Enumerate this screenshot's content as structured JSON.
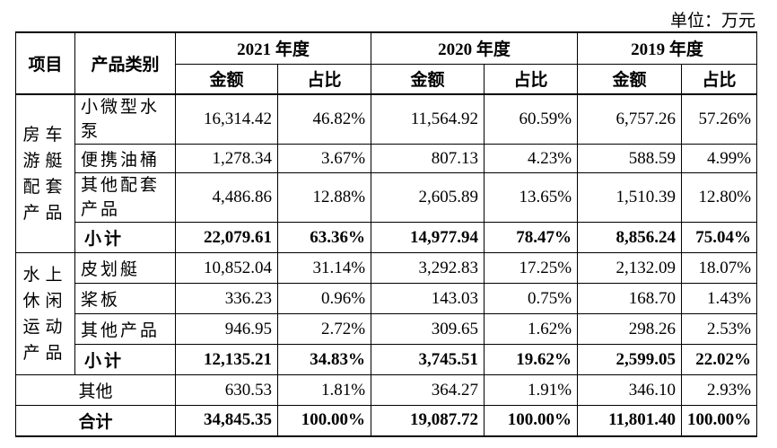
{
  "unit_label": "单位：万元",
  "headers": {
    "item": "项目",
    "category": "产品类别",
    "years": [
      "2021 年度",
      "2020 年度",
      "2019 年度"
    ],
    "amount": "金额",
    "ratio": "占比"
  },
  "groups": [
    {
      "name": "房车游艇配套产品",
      "rows": [
        {
          "label": "小微型水泵",
          "values": [
            "16,314.42",
            "46.82%",
            "11,564.92",
            "60.59%",
            "6,757.26",
            "57.26%"
          ]
        },
        {
          "label": "便携油桶",
          "values": [
            "1,278.34",
            "3.67%",
            "807.13",
            "4.23%",
            "588.59",
            "4.99%"
          ]
        },
        {
          "label": "其他配套产品",
          "values": [
            "4,486.86",
            "12.88%",
            "2,605.89",
            "13.65%",
            "1,510.39",
            "12.80%"
          ]
        }
      ],
      "subtotal": {
        "label": "小计",
        "values": [
          "22,079.61",
          "63.36%",
          "14,977.94",
          "78.47%",
          "8,856.24",
          "75.04%"
        ]
      }
    },
    {
      "name": "水上休闲运动产品",
      "rows": [
        {
          "label": "皮划艇",
          "values": [
            "10,852.04",
            "31.14%",
            "3,292.83",
            "17.25%",
            "2,132.09",
            "18.07%"
          ]
        },
        {
          "label": "桨板",
          "values": [
            "336.23",
            "0.96%",
            "143.03",
            "0.75%",
            "168.70",
            "1.43%"
          ]
        },
        {
          "label": "其他产品",
          "values": [
            "946.95",
            "2.72%",
            "309.65",
            "1.62%",
            "298.26",
            "2.53%"
          ]
        }
      ],
      "subtotal": {
        "label": "小计",
        "values": [
          "12,135.21",
          "34.83%",
          "3,745.51",
          "19.62%",
          "2,599.05",
          "22.02%"
        ]
      }
    }
  ],
  "other": {
    "label": "其他",
    "values": [
      "630.53",
      "1.81%",
      "364.27",
      "1.91%",
      "346.10",
      "2.93%"
    ]
  },
  "total": {
    "label": "合计",
    "values": [
      "34,845.35",
      "100.00%",
      "19,087.72",
      "100.00%",
      "11,801.40",
      "100.00%"
    ]
  }
}
